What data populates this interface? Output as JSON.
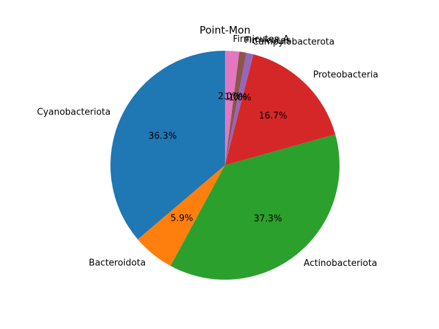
{
  "chart_data": {
    "type": "pie",
    "title": "Point-Mon",
    "start_angle_deg": 90,
    "direction": "counterclockwise",
    "slices": [
      {
        "label": "Cyanobacteriota",
        "value": 36.3,
        "pct_label": "36.3%",
        "color": "#1f77b4"
      },
      {
        "label": "Bacteroidota",
        "value": 5.9,
        "pct_label": "5.9%",
        "color": "#ff7f0e"
      },
      {
        "label": "Actinobacteriota",
        "value": 37.3,
        "pct_label": "37.3%",
        "color": "#2ca02c"
      },
      {
        "label": "Proteobacteria",
        "value": 16.7,
        "pct_label": "16.7%",
        "color": "#d62728"
      },
      {
        "label": "Campylobacterota",
        "value": 1.0,
        "pct_label": "1.0%",
        "color": "#9467bd"
      },
      {
        "label": "Firmicutes",
        "value": 1.0,
        "pct_label": "1.0%",
        "color": "#8c564b"
      },
      {
        "label": "Firmicutes_A",
        "value": 2.0,
        "pct_label": "2.0%",
        "color": "#e377c2"
      }
    ]
  }
}
